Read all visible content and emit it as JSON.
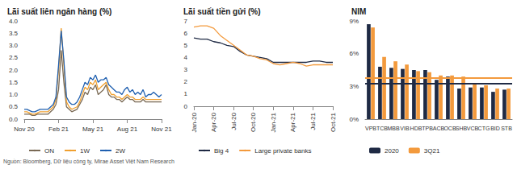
{
  "source": "Nguồn: Bloomberg, Dữ liệu công ty, Mirae Asset Việt Nam Research",
  "chart_data": [
    {
      "type": "line",
      "title": "Lãi suất liên ngân hàng (%)",
      "categories": [
        "Nov 20",
        null,
        null,
        null,
        null,
        null,
        null,
        null,
        null,
        null,
        null,
        null,
        null,
        "Feb 21",
        null,
        null,
        null,
        null,
        null,
        null,
        null,
        null,
        null,
        null,
        null,
        null,
        "May 21",
        null,
        null,
        null,
        null,
        null,
        null,
        null,
        null,
        null,
        null,
        null,
        null,
        "Aug 21",
        null,
        null,
        null,
        null,
        null,
        null,
        null,
        null,
        null,
        null,
        null,
        null,
        "Nov 21"
      ],
      "series": [
        {
          "name": "ON",
          "color": "#7a6a55",
          "values": [
            0.2,
            0.2,
            0.2,
            0.15,
            0.15,
            0.2,
            0.2,
            0.2,
            0.2,
            0.2,
            0.3,
            0.4,
            0.6,
            1.2,
            2.8,
            1.5,
            0.5,
            0.4,
            0.3,
            0.35,
            0.4,
            0.6,
            0.8,
            1.1,
            1.0,
            1.3,
            1.2,
            1.4,
            1.0,
            1.1,
            1.2,
            1.4,
            1.0,
            0.9,
            0.9,
            0.8,
            0.8,
            0.7,
            0.8,
            0.9,
            0.8,
            0.8,
            0.7,
            0.7,
            0.7,
            0.8,
            0.7,
            0.7,
            0.7,
            0.7,
            0.7,
            0.7,
            0.7
          ]
        },
        {
          "name": "1W",
          "color": "#f0a030",
          "values": [
            0.3,
            0.3,
            0.25,
            0.2,
            0.2,
            0.25,
            0.3,
            0.3,
            0.3,
            0.3,
            0.4,
            0.5,
            0.8,
            2.0,
            3.7,
            2.2,
            0.7,
            0.5,
            0.4,
            0.45,
            0.5,
            0.7,
            1.0,
            1.3,
            1.2,
            1.5,
            1.4,
            1.6,
            1.2,
            1.3,
            1.4,
            1.5,
            1.2,
            1.0,
            1.0,
            0.9,
            0.9,
            0.8,
            0.9,
            1.0,
            0.9,
            0.9,
            0.8,
            0.8,
            0.8,
            0.9,
            0.8,
            0.8,
            0.8,
            0.8,
            0.8,
            0.8,
            0.8
          ]
        },
        {
          "name": "2W",
          "color": "#2060b0",
          "values": [
            0.4,
            0.4,
            0.35,
            0.3,
            0.3,
            0.35,
            0.4,
            0.4,
            0.4,
            0.4,
            0.5,
            0.6,
            0.9,
            2.2,
            3.6,
            2.4,
            0.9,
            0.7,
            0.6,
            0.6,
            0.7,
            0.9,
            1.2,
            1.5,
            1.4,
            1.7,
            1.6,
            1.8,
            1.5,
            1.6,
            1.6,
            1.7,
            1.4,
            1.3,
            1.2,
            1.1,
            1.1,
            1.0,
            1.2,
            1.3,
            1.1,
            1.2,
            1.0,
            1.1,
            1.0,
            1.2,
            0.9,
            1.0,
            1.0,
            1.1,
            1.0,
            0.9,
            1.0
          ]
        }
      ],
      "ylim": [
        0,
        4
      ],
      "yticks": [
        {
          "value": 0,
          "label": "0.0"
        },
        {
          "value": 0.5,
          "label": "0.5"
        },
        {
          "value": 1,
          "label": "1.0"
        },
        {
          "value": 1.5,
          "label": "1.5"
        },
        {
          "value": 2,
          "label": "2.0"
        },
        {
          "value": 2.5,
          "label": "2.5"
        },
        {
          "value": 3,
          "label": "3.0"
        },
        {
          "value": 3.5,
          "label": "3.5"
        },
        {
          "value": 4,
          "label": "4.0"
        }
      ],
      "grid": false,
      "legend": "bottom"
    },
    {
      "type": "line",
      "title": "Lãi suất tiền gửi (%)",
      "categories": [
        "Jan-20",
        null,
        null,
        "Apr-20",
        null,
        null,
        "Jul-20",
        null,
        null,
        "Oct-20",
        null,
        null,
        "Jan-21",
        null,
        null,
        "Apr-21",
        null,
        null,
        "Jul-21",
        null,
        null,
        "Oct-21"
      ],
      "series": [
        {
          "name": "Big 4",
          "color": "#1f2a44",
          "values": [
            5.6,
            5.5,
            5.5,
            5.3,
            5.2,
            5.0,
            4.9,
            4.5,
            4.2,
            4.1,
            4.0,
            3.9,
            3.6,
            3.6,
            3.6,
            3.6,
            3.6,
            3.6,
            3.7,
            3.7,
            3.6,
            3.6
          ]
        },
        {
          "name": "Large private banks",
          "color": "#f39a3d",
          "values": [
            6.5,
            6.6,
            6.6,
            6.4,
            5.8,
            5.4,
            5.0,
            4.6,
            4.2,
            4.1,
            3.9,
            3.8,
            3.5,
            3.4,
            3.5,
            3.6,
            3.5,
            3.3,
            3.4,
            3.4,
            3.4,
            3.4
          ]
        }
      ],
      "ylim": [
        0,
        7
      ],
      "yticks": [
        0,
        1,
        2,
        3,
        4,
        5,
        6,
        7
      ],
      "grid": false,
      "legend": "bottom"
    },
    {
      "type": "bar",
      "title": "NIM",
      "categories": [
        "VPB",
        "TCB",
        "MBB",
        "VIB",
        "HDB",
        "TPB",
        "ACB",
        "OCB",
        "SHB",
        "VCB",
        "CTG",
        "BID",
        "STB"
      ],
      "series": [
        {
          "name": "2020",
          "color": "#1f2a44",
          "values": [
            8.7,
            4.8,
            4.7,
            4.6,
            4.5,
            4.5,
            3.6,
            3.9,
            2.8,
            2.9,
            2.9,
            2.5,
            2.7
          ],
          "reference_line": 3.3
        },
        {
          "name": "3Q21",
          "color": "#f39a3d",
          "values": [
            8.4,
            5.7,
            5.3,
            5.0,
            4.4,
            4.3,
            4.0,
            4.0,
            3.9,
            3.3,
            3.1,
            2.8,
            2.8
          ],
          "reference_line": 3.8
        }
      ],
      "ylim": [
        0,
        9
      ],
      "yticks": [
        {
          "value": 0,
          "label": "0%"
        },
        {
          "value": 3,
          "label": "3%"
        },
        {
          "value": 6,
          "label": "6%"
        },
        {
          "value": 9,
          "label": "9%"
        }
      ],
      "grid": false,
      "legend": "bottom"
    }
  ]
}
